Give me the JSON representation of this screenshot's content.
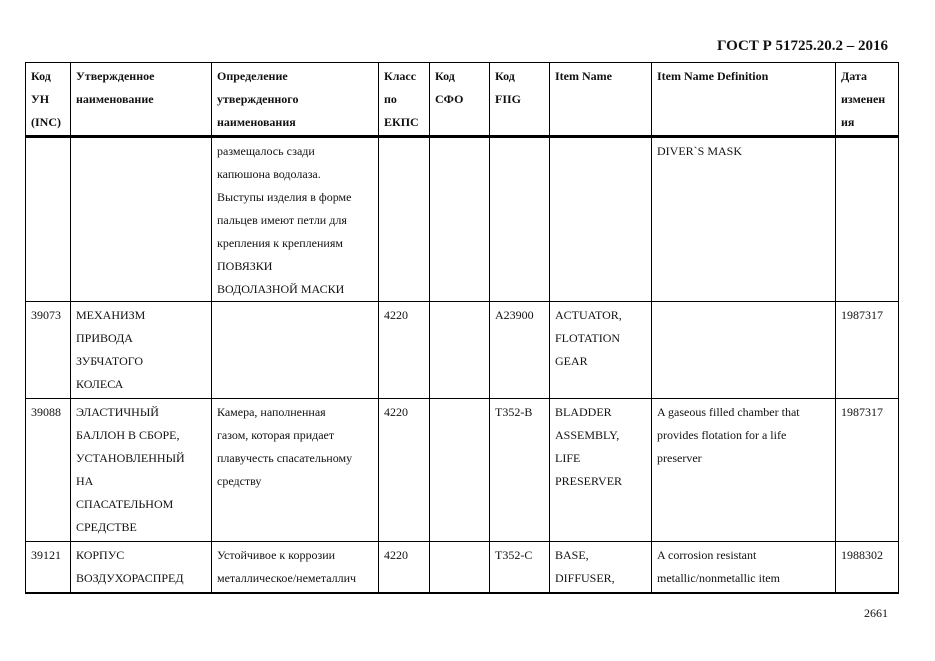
{
  "header": {
    "title": "ГОСТ Р 51725.20.2 – 2016"
  },
  "footer": {
    "page_number": "2661"
  },
  "table": {
    "columns": [
      [
        "Код",
        "УН",
        "(INC)"
      ],
      [
        "Утвержденное",
        "наименование"
      ],
      [
        "Определение",
        "утвержденного",
        "наименования"
      ],
      [
        "Класс",
        "по",
        "ЕКПС"
      ],
      [
        "Код",
        "СФО"
      ],
      [
        "Код",
        "FIIG"
      ],
      [
        "Item Name"
      ],
      [
        "Item Name Definition"
      ],
      [
        "Дата",
        "изменен",
        "ия"
      ]
    ],
    "rows": [
      {
        "height": 162,
        "cells": [
          [],
          [],
          [
            "размещалось сзади",
            "капюшона водолаза.",
            "Выступы изделия в форме",
            "пальцев имеют петли для",
            "крепления к креплениям",
            "ПОВЯЗКИ",
            "ВОДОЛАЗНОЙ МАСКИ"
          ],
          [],
          [],
          [],
          [],
          [
            "DIVER`S MASK"
          ],
          []
        ]
      },
      {
        "height": 97,
        "cells": [
          [
            "39073"
          ],
          [
            "МЕХАНИЗМ",
            "ПРИВОДА",
            "ЗУБЧАТОГО",
            "КОЛЕСА"
          ],
          [],
          [
            "4220"
          ],
          [],
          [
            "A23900"
          ],
          [
            "ACTUATOR,",
            "FLOTATION",
            "GEAR"
          ],
          [],
          [
            "1987317"
          ]
        ]
      },
      {
        "height": 143,
        "cells": [
          [
            "39088"
          ],
          [
            "ЭЛАСТИЧНЫЙ",
            "БАЛЛОН В СБОРЕ,",
            "УСТАНОВЛЕННЫЙ",
            "НА",
            "СПАСАТЕЛЬНОМ",
            "СРЕДСТВЕ"
          ],
          [
            "Камера, наполненная",
            "газом, которая придает",
            "плавучесть спасательному",
            "средству"
          ],
          [
            "4220"
          ],
          [],
          [
            "T352-B"
          ],
          [
            "BLADDER",
            "ASSEMBLY,",
            "LIFE",
            "PRESERVER"
          ],
          [
            "A gaseous filled chamber that",
            "provides flotation for a life",
            "preserver"
          ],
          [
            "1987317"
          ]
        ]
      },
      {
        "height": 51,
        "cells": [
          [
            "39121"
          ],
          [
            "КОРПУС",
            "ВОЗДУХОРАСПРЕД"
          ],
          [
            "Устойчивое к коррозии",
            "металлическое/неметаллич"
          ],
          [
            "4220"
          ],
          [],
          [
            "T352-C"
          ],
          [
            "BASE,",
            "DIFFUSER,"
          ],
          [
            "A corrosion resistant",
            "metallic/nonmetallic item"
          ],
          [
            "1988302"
          ]
        ]
      }
    ]
  }
}
